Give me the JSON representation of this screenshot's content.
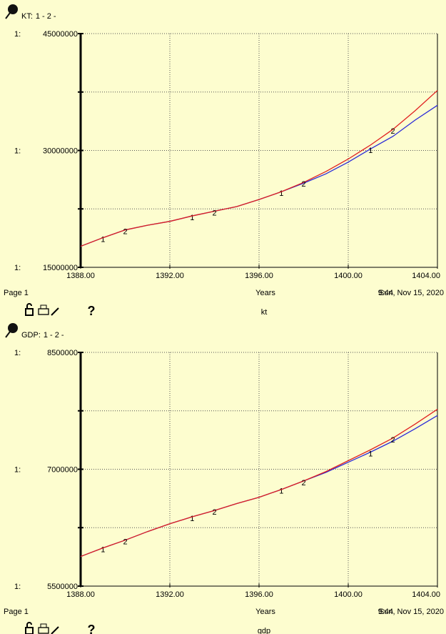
{
  "chart_data": [
    {
      "type": "line",
      "title": "KT:",
      "legend_separator": "-",
      "axis_prefix": "1:",
      "x": [
        1388,
        1389,
        1390,
        1391,
        1392,
        1393,
        1394,
        1395,
        1396,
        1397,
        1398,
        1399,
        1400,
        1401,
        1402,
        1403,
        1404
      ],
      "series": [
        {
          "name": "1",
          "color": "#2a2ad8",
          "values": [
            17700000,
            18800000,
            19800000,
            20400000,
            20900000,
            21600000,
            22200000,
            22800000,
            23700000,
            24700000,
            25800000,
            27000000,
            28500000,
            30200000,
            31800000,
            33900000,
            35800000
          ]
        },
        {
          "name": "2",
          "color": "#e02020",
          "values": [
            17700000,
            18800000,
            19800000,
            20400000,
            20900000,
            21600000,
            22200000,
            22800000,
            23700000,
            24700000,
            25900000,
            27300000,
            28900000,
            30700000,
            32700000,
            35100000,
            37700000
          ]
        }
      ],
      "xlim": [
        1388,
        1404
      ],
      "xticks": [
        {
          "value": 1388,
          "label": "1388.00"
        },
        {
          "value": 1392,
          "label": "1392.00"
        },
        {
          "value": 1396,
          "label": "1396.00"
        },
        {
          "value": 1400,
          "label": "1400.00"
        },
        {
          "value": 1404,
          "label": "1404.00"
        }
      ],
      "ylim": [
        15000000,
        45000000
      ],
      "yticks": [
        15000000,
        {
          "value": 22500000,
          "label": null
        },
        30000000,
        {
          "value": 37500000,
          "label": null
        },
        45000000
      ],
      "grid": true,
      "page_label": "Page 1",
      "x_label": "Years",
      "time": "9:44",
      "date": "Sun, Nov 15, 2020",
      "footer_name": "kt",
      "toolbar_help": "?"
    },
    {
      "type": "line",
      "title": "GDP:",
      "legend_separator": "-",
      "axis_prefix": "1:",
      "x": [
        1388,
        1389,
        1390,
        1391,
        1392,
        1393,
        1394,
        1395,
        1396,
        1397,
        1398,
        1399,
        1400,
        1401,
        1402,
        1403,
        1404
      ],
      "series": [
        {
          "name": "1",
          "color": "#2a2ad8",
          "values": [
            5880000,
            5990000,
            6090000,
            6200000,
            6300000,
            6390000,
            6470000,
            6560000,
            6640000,
            6740000,
            6850000,
            6960000,
            7090000,
            7220000,
            7360000,
            7520000,
            7690000
          ]
        },
        {
          "name": "2",
          "color": "#e02020",
          "values": [
            5880000,
            5990000,
            6090000,
            6200000,
            6300000,
            6390000,
            6470000,
            6560000,
            6640000,
            6740000,
            6850000,
            6970000,
            7110000,
            7250000,
            7400000,
            7580000,
            7770000
          ]
        }
      ],
      "xlim": [
        1388,
        1404
      ],
      "xticks": [
        {
          "value": 1388,
          "label": "1388.00"
        },
        {
          "value": 1392,
          "label": "1392.00"
        },
        {
          "value": 1396,
          "label": "1396.00"
        },
        {
          "value": 1400,
          "label": "1400.00"
        },
        {
          "value": 1404,
          "label": "1404.00"
        }
      ],
      "ylim": [
        5500000,
        8500000
      ],
      "yticks": [
        5500000,
        {
          "value": 6250000,
          "label": null
        },
        7000000,
        {
          "value": 7750000,
          "label": null
        },
        8500000
      ],
      "grid": true,
      "page_label": "Page 1",
      "x_label": "Years",
      "time": "9:44",
      "date": "Sun, Nov 15, 2020",
      "footer_name": "gdp",
      "toolbar_help": "?"
    }
  ]
}
